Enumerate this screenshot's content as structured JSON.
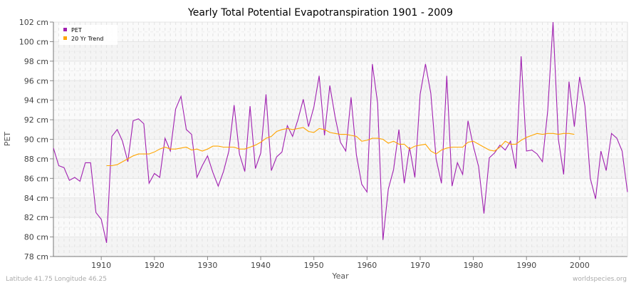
{
  "chart_data": {
    "type": "line",
    "title": "Yearly Total Potential Evapotranspiration 1901 - 2009",
    "xlabel": "Year",
    "ylabel": "PET",
    "xlim": [
      1901,
      2009
    ],
    "ylim": [
      78,
      102
    ],
    "x_ticks": [
      1910,
      1920,
      1930,
      1940,
      1950,
      1960,
      1970,
      1980,
      1990,
      2000
    ],
    "y_ticks": [
      {
        "v": 78,
        "label": "78 cm"
      },
      {
        "v": 80,
        "label": "80 cm"
      },
      {
        "v": 82,
        "label": "82 cm"
      },
      {
        "v": 84,
        "label": "84 cm"
      },
      {
        "v": 86,
        "label": "86 cm"
      },
      {
        "v": 88,
        "label": "88 cm"
      },
      {
        "v": 90,
        "label": "90 cm"
      },
      {
        "v": 92,
        "label": "92 cm"
      },
      {
        "v": 94,
        "label": "94 cm"
      },
      {
        "v": 96,
        "label": "96 cm"
      },
      {
        "v": 98,
        "label": "98 cm"
      },
      {
        "v": 100,
        "label": "100 cm"
      },
      {
        "v": 102,
        "label": "102 cm"
      }
    ],
    "grid": true,
    "legend": "top-left",
    "series": [
      {
        "name": "PET",
        "color": "#a020b0",
        "points": [
          [
            1901,
            89.1
          ],
          [
            1902,
            87.3
          ],
          [
            1903,
            87.1
          ],
          [
            1904,
            85.8
          ],
          [
            1905,
            86.1
          ],
          [
            1906,
            85.7
          ],
          [
            1907,
            87.6
          ],
          [
            1908,
            87.6
          ],
          [
            1909,
            82.5
          ],
          [
            1910,
            81.8
          ],
          [
            1911,
            79.4
          ],
          [
            1912,
            90.3
          ],
          [
            1913,
            91.0
          ],
          [
            1914,
            89.8
          ],
          [
            1915,
            87.7
          ],
          [
            1916,
            91.9
          ],
          [
            1917,
            92.1
          ],
          [
            1918,
            91.6
          ],
          [
            1919,
            85.5
          ],
          [
            1920,
            86.5
          ],
          [
            1921,
            86.1
          ],
          [
            1922,
            90.1
          ],
          [
            1923,
            88.8
          ],
          [
            1924,
            93.1
          ],
          [
            1925,
            94.4
          ],
          [
            1926,
            91.0
          ],
          [
            1927,
            90.5
          ],
          [
            1928,
            86.1
          ],
          [
            1929,
            87.3
          ],
          [
            1930,
            88.3
          ],
          [
            1931,
            86.6
          ],
          [
            1932,
            85.2
          ],
          [
            1933,
            86.7
          ],
          [
            1934,
            88.8
          ],
          [
            1935,
            93.5
          ],
          [
            1936,
            88.5
          ],
          [
            1937,
            86.7
          ],
          [
            1938,
            93.4
          ],
          [
            1939,
            87.0
          ],
          [
            1940,
            88.6
          ],
          [
            1941,
            94.6
          ],
          [
            1942,
            86.8
          ],
          [
            1943,
            88.2
          ],
          [
            1944,
            88.7
          ],
          [
            1945,
            91.4
          ],
          [
            1946,
            90.3
          ],
          [
            1947,
            92.0
          ],
          [
            1948,
            94.1
          ],
          [
            1949,
            91.3
          ],
          [
            1950,
            93.3
          ],
          [
            1951,
            96.5
          ],
          [
            1952,
            90.4
          ],
          [
            1953,
            95.5
          ],
          [
            1954,
            92.3
          ],
          [
            1955,
            89.7
          ],
          [
            1956,
            88.8
          ],
          [
            1957,
            94.3
          ],
          [
            1958,
            88.4
          ],
          [
            1959,
            85.4
          ],
          [
            1960,
            84.6
          ],
          [
            1961,
            97.7
          ],
          [
            1962,
            93.7
          ],
          [
            1963,
            79.7
          ],
          [
            1964,
            84.9
          ],
          [
            1965,
            86.9
          ],
          [
            1966,
            91.0
          ],
          [
            1967,
            85.5
          ],
          [
            1968,
            89.2
          ],
          [
            1969,
            86.1
          ],
          [
            1970,
            94.6
          ],
          [
            1971,
            97.7
          ],
          [
            1972,
            94.7
          ],
          [
            1973,
            88.0
          ],
          [
            1974,
            85.5
          ],
          [
            1975,
            96.5
          ],
          [
            1976,
            85.2
          ],
          [
            1977,
            87.6
          ],
          [
            1978,
            86.4
          ],
          [
            1979,
            91.9
          ],
          [
            1980,
            89.3
          ],
          [
            1981,
            87.2
          ],
          [
            1982,
            82.4
          ],
          [
            1983,
            88.1
          ],
          [
            1984,
            88.6
          ],
          [
            1985,
            89.4
          ],
          [
            1986,
            88.9
          ],
          [
            1987,
            89.8
          ],
          [
            1988,
            87.0
          ],
          [
            1989,
            98.5
          ],
          [
            1990,
            88.8
          ],
          [
            1991,
            88.9
          ],
          [
            1992,
            88.5
          ],
          [
            1993,
            87.7
          ],
          [
            1994,
            93.0
          ],
          [
            1995,
            102.0
          ],
          [
            1996,
            90.0
          ],
          [
            1997,
            86.4
          ],
          [
            1998,
            95.9
          ],
          [
            1999,
            91.3
          ],
          [
            2000,
            96.4
          ],
          [
            2001,
            93.4
          ],
          [
            2002,
            86.0
          ],
          [
            2003,
            83.9
          ],
          [
            2004,
            88.8
          ],
          [
            2005,
            86.8
          ],
          [
            2006,
            90.6
          ],
          [
            2007,
            90.1
          ],
          [
            2008,
            88.8
          ],
          [
            2009,
            84.6
          ]
        ]
      },
      {
        "name": "20 Yr Trend",
        "color": "#ffa500",
        "points": [
          [
            1911,
            87.3
          ],
          [
            1912,
            87.3
          ],
          [
            1913,
            87.4
          ],
          [
            1914,
            87.7
          ],
          [
            1915,
            88.0
          ],
          [
            1916,
            88.3
          ],
          [
            1917,
            88.5
          ],
          [
            1918,
            88.5
          ],
          [
            1919,
            88.5
          ],
          [
            1920,
            88.7
          ],
          [
            1921,
            89.0
          ],
          [
            1922,
            89.2
          ],
          [
            1923,
            89.0
          ],
          [
            1924,
            89.0
          ],
          [
            1925,
            89.1
          ],
          [
            1926,
            89.2
          ],
          [
            1927,
            88.9
          ],
          [
            1928,
            89.0
          ],
          [
            1929,
            88.8
          ],
          [
            1930,
            89.0
          ],
          [
            1931,
            89.3
          ],
          [
            1932,
            89.3
          ],
          [
            1933,
            89.2
          ],
          [
            1934,
            89.2
          ],
          [
            1935,
            89.2
          ],
          [
            1936,
            89.0
          ],
          [
            1937,
            89.0
          ],
          [
            1938,
            89.2
          ],
          [
            1939,
            89.4
          ],
          [
            1940,
            89.7
          ],
          [
            1941,
            90.1
          ],
          [
            1942,
            90.3
          ],
          [
            1943,
            90.8
          ],
          [
            1944,
            91.0
          ],
          [
            1945,
            91.1
          ],
          [
            1946,
            91.0
          ],
          [
            1947,
            91.1
          ],
          [
            1948,
            91.2
          ],
          [
            1949,
            90.8
          ],
          [
            1950,
            90.7
          ],
          [
            1951,
            91.1
          ],
          [
            1952,
            91.0
          ],
          [
            1953,
            90.7
          ],
          [
            1954,
            90.6
          ],
          [
            1955,
            90.5
          ],
          [
            1956,
            90.5
          ],
          [
            1957,
            90.4
          ],
          [
            1958,
            90.3
          ],
          [
            1959,
            89.8
          ],
          [
            1960,
            89.9
          ],
          [
            1961,
            90.1
          ],
          [
            1962,
            90.1
          ],
          [
            1963,
            90.0
          ],
          [
            1964,
            89.6
          ],
          [
            1965,
            89.8
          ],
          [
            1966,
            89.5
          ],
          [
            1967,
            89.5
          ],
          [
            1968,
            89.0
          ],
          [
            1969,
            89.3
          ],
          [
            1970,
            89.4
          ],
          [
            1971,
            89.5
          ],
          [
            1972,
            88.8
          ],
          [
            1973,
            88.5
          ],
          [
            1974,
            88.9
          ],
          [
            1975,
            89.1
          ],
          [
            1976,
            89.2
          ],
          [
            1977,
            89.2
          ],
          [
            1978,
            89.2
          ],
          [
            1979,
            89.7
          ],
          [
            1980,
            89.8
          ],
          [
            1981,
            89.5
          ],
          [
            1982,
            89.2
          ],
          [
            1983,
            88.9
          ],
          [
            1984,
            88.8
          ],
          [
            1985,
            89.2
          ],
          [
            1986,
            89.8
          ],
          [
            1987,
            89.5
          ],
          [
            1988,
            89.5
          ],
          [
            1989,
            89.9
          ],
          [
            1990,
            90.2
          ],
          [
            1991,
            90.4
          ],
          [
            1992,
            90.6
          ],
          [
            1993,
            90.5
          ],
          [
            1994,
            90.6
          ],
          [
            1995,
            90.6
          ],
          [
            1996,
            90.5
          ],
          [
            1997,
            90.6
          ],
          [
            1998,
            90.6
          ],
          [
            1999,
            90.5
          ]
        ]
      }
    ]
  },
  "footer": {
    "location": "Latitude 41.75 Longitude 46.25",
    "source": "worldspecies.org"
  }
}
